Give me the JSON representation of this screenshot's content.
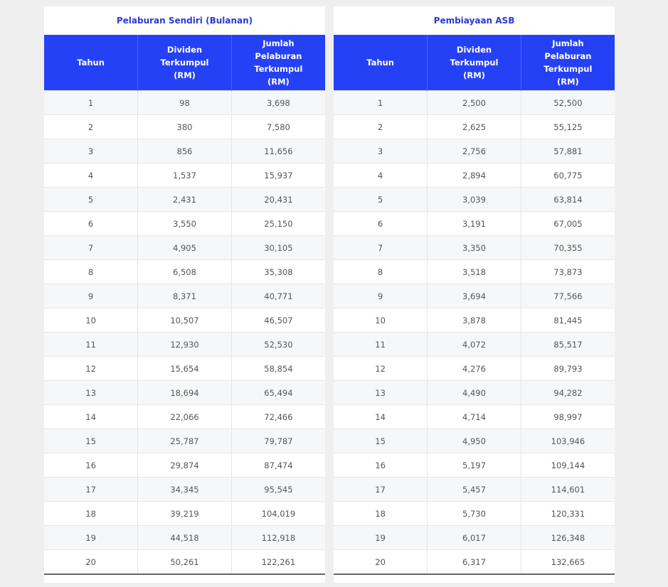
{
  "tables": [
    {
      "title": "Pelaburan Sendiri (Bulanan)",
      "headers": [
        "Tahun",
        "Dividen Terkumpul (RM)",
        "Jumlah Pelaburan Terkumpul (RM)"
      ],
      "rows": [
        [
          "1",
          "98",
          "3,698"
        ],
        [
          "2",
          "380",
          "7,580"
        ],
        [
          "3",
          "856",
          "11,656"
        ],
        [
          "4",
          "1,537",
          "15,937"
        ],
        [
          "5",
          "2,431",
          "20,431"
        ],
        [
          "6",
          "3,550",
          "25,150"
        ],
        [
          "7",
          "4,905",
          "30,105"
        ],
        [
          "8",
          "6,508",
          "35,308"
        ],
        [
          "9",
          "8,371",
          "40,771"
        ],
        [
          "10",
          "10,507",
          "46,507"
        ],
        [
          "11",
          "12,930",
          "52,530"
        ],
        [
          "12",
          "15,654",
          "58,854"
        ],
        [
          "13",
          "18,694",
          "65,494"
        ],
        [
          "14",
          "22,066",
          "72,466"
        ],
        [
          "15",
          "25,787",
          "79,787"
        ],
        [
          "16",
          "29,874",
          "87,474"
        ],
        [
          "17",
          "34,345",
          "95,545"
        ],
        [
          "18",
          "39,219",
          "104,019"
        ],
        [
          "19",
          "44,518",
          "112,918"
        ],
        [
          "20",
          "50,261",
          "122,261"
        ]
      ]
    },
    {
      "title": "Pembiayaan ASB",
      "headers": [
        "Tahun",
        "Dividen Terkumpul (RM)",
        "Jumlah Pelaburan Terkumpul (RM)"
      ],
      "rows": [
        [
          "1",
          "2,500",
          "52,500"
        ],
        [
          "2",
          "2,625",
          "55,125"
        ],
        [
          "3",
          "2,756",
          "57,881"
        ],
        [
          "4",
          "2,894",
          "60,775"
        ],
        [
          "5",
          "3,039",
          "63,814"
        ],
        [
          "6",
          "3,191",
          "67,005"
        ],
        [
          "7",
          "3,350",
          "70,355"
        ],
        [
          "8",
          "3,518",
          "73,873"
        ],
        [
          "9",
          "3,694",
          "77,566"
        ],
        [
          "10",
          "3,878",
          "81,445"
        ],
        [
          "11",
          "4,072",
          "85,517"
        ],
        [
          "12",
          "4,276",
          "89,793"
        ],
        [
          "13",
          "4,490",
          "94,282"
        ],
        [
          "14",
          "4,714",
          "98,997"
        ],
        [
          "15",
          "4,950",
          "103,946"
        ],
        [
          "16",
          "5,197",
          "109,144"
        ],
        [
          "17",
          "5,457",
          "114,601"
        ],
        [
          "18",
          "5,730",
          "120,331"
        ],
        [
          "19",
          "6,017",
          "126,348"
        ],
        [
          "20",
          "6,317",
          "132,665"
        ]
      ]
    }
  ]
}
